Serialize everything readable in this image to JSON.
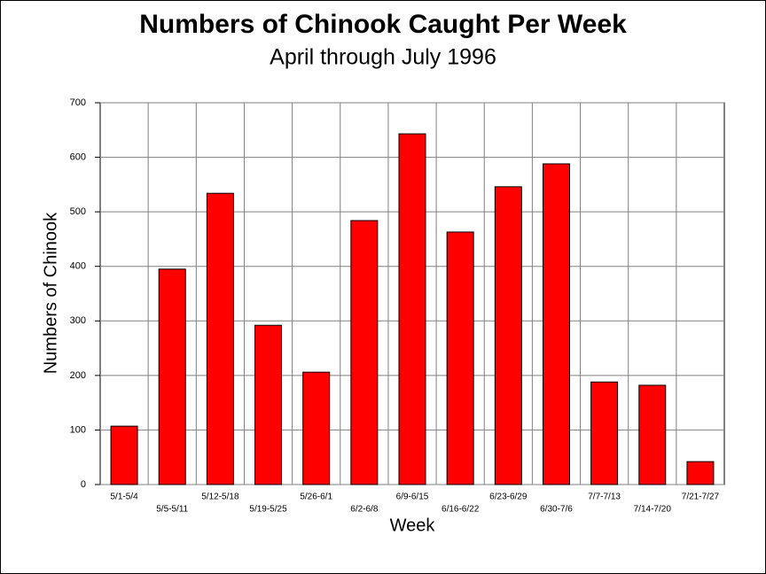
{
  "chart_data": {
    "type": "bar",
    "title": "Numbers of Chinook Caught Per Week",
    "subtitle": "April through July 1996",
    "x_label": "Week",
    "y_label": "Numbers of Chinook",
    "categories": [
      "5/1-5/4",
      "5/5-5/11",
      "5/12-5/18",
      "5/19-5/25",
      "5/26-6/1",
      "6/2-6/8",
      "6/9-6/15",
      "6/16-6/22",
      "6/23-6/29",
      "6/30-7/6",
      "7/7-7/13",
      "7/14-7/20",
      "7/21-7/27"
    ],
    "values": [
      107,
      395,
      534,
      292,
      206,
      484,
      643,
      463,
      546,
      588,
      188,
      182,
      42
    ],
    "color": "#ff0000",
    "ylim": [
      0,
      700
    ],
    "yticks": [
      0,
      100,
      200,
      300,
      400,
      500,
      600,
      700
    ],
    "grid": true
  }
}
